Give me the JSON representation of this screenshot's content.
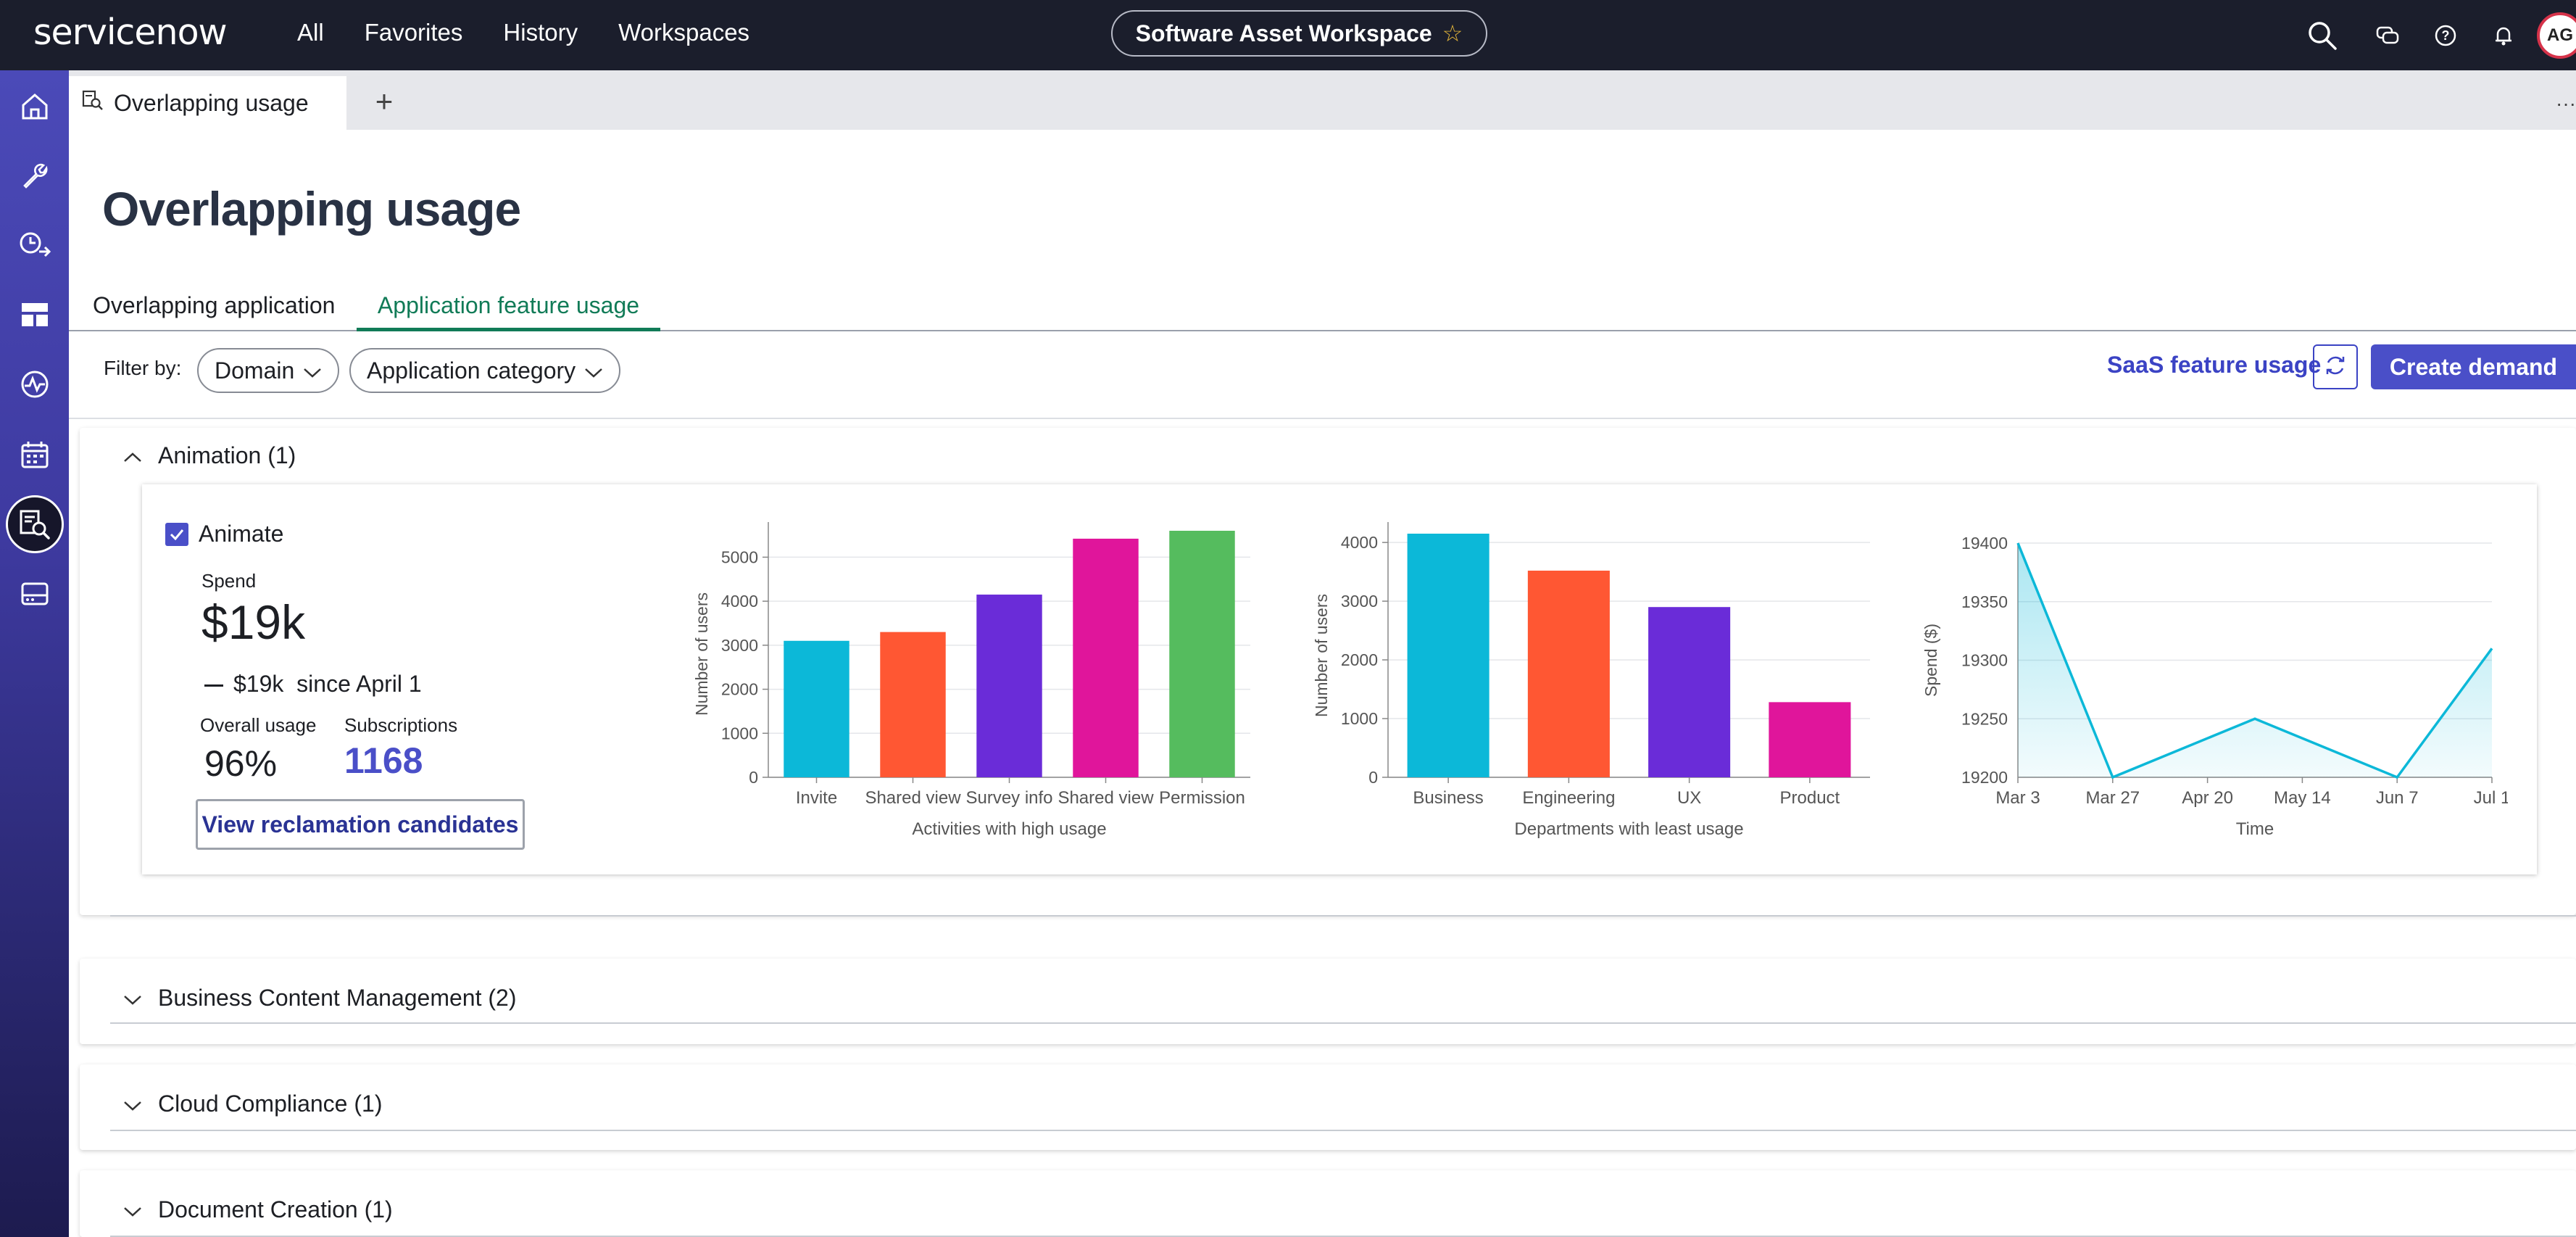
{
  "header": {
    "logo": "servicenow",
    "nav": [
      "All",
      "Favorites",
      "History",
      "Workspaces"
    ],
    "workspace": "Software Asset Workspace",
    "avatar_initials": "AG"
  },
  "tabstrip": {
    "active_tab": "Overlapping usage",
    "add_label": "+",
    "more_label": "···"
  },
  "page": {
    "title": "Overlapping usage",
    "tabs": [
      "Overlapping application",
      "Application feature usage"
    ],
    "selected_tab": "Application feature usage"
  },
  "filters": {
    "label": "Filter by:",
    "chips": [
      "Domain",
      "Application category"
    ],
    "saas_link": "SaaS feature usage",
    "create_button": "Create demand"
  },
  "sections": [
    {
      "title": "Animation (1)",
      "expanded": true
    },
    {
      "title": "Business Content Management (2)",
      "expanded": false
    },
    {
      "title": "Cloud Compliance (1)",
      "expanded": false
    },
    {
      "title": "Document Creation (1)",
      "expanded": false
    }
  ],
  "card": {
    "app_name": "Animate",
    "checked": true,
    "spend_label": "Spend",
    "spend_value": "$19k",
    "spend_change": "$19k",
    "spend_since": "since April 1",
    "usage_label": "Overall usage",
    "usage_value": "96%",
    "subs_label": "Subscriptions",
    "subs_value": "1168",
    "reclaim_button": "View reclamation candidates"
  },
  "chart_data": [
    {
      "type": "bar",
      "categories": [
        "Invite",
        "Shared view",
        "Survey info",
        "Shared view",
        "Permission"
      ],
      "values": [
        3100,
        3300,
        4150,
        5420,
        5600
      ],
      "colors": [
        "#0cb8d8",
        "#ff5733",
        "#6a2cd8",
        "#e0159b",
        "#55bc5e"
      ],
      "xlabel": "Activities with high usage",
      "ylabel": "Number of users",
      "yticks": [
        0,
        1000,
        2000,
        3000,
        4000,
        5000
      ],
      "ylim": [
        0,
        5600
      ]
    },
    {
      "type": "bar",
      "categories": [
        "Business",
        "Engineering",
        "UX",
        "Product"
      ],
      "values": [
        4150,
        3520,
        2900,
        1280
      ],
      "colors": [
        "#0cb8d8",
        "#ff5733",
        "#6a2cd8",
        "#e0159b"
      ],
      "xlabel": "Departments with least usage",
      "ylabel": "Number of users",
      "yticks": [
        0,
        1000,
        2000,
        3000,
        4000
      ],
      "ylim": [
        0,
        4150
      ]
    },
    {
      "type": "area",
      "x": [
        "Mar 3",
        "Mar 27",
        "Apr 20",
        "May 14",
        "Jun 7",
        "Jul 1"
      ],
      "points": [
        {
          "x": "Mar 3",
          "y": 19400
        },
        {
          "x": "Mar 27",
          "y": 19200
        },
        {
          "x": "Apr 20 - May 14",
          "y": 19250
        },
        {
          "x": "Jun 7",
          "y": 19200
        },
        {
          "x": "Jul 1",
          "y": 19310
        }
      ],
      "xlabel": "Time",
      "ylabel": "Spend ($)",
      "yticks": [
        19200,
        19250,
        19300,
        19350,
        19400
      ],
      "ylim": [
        19200,
        19400
      ],
      "color": "#0cb8d8"
    }
  ]
}
